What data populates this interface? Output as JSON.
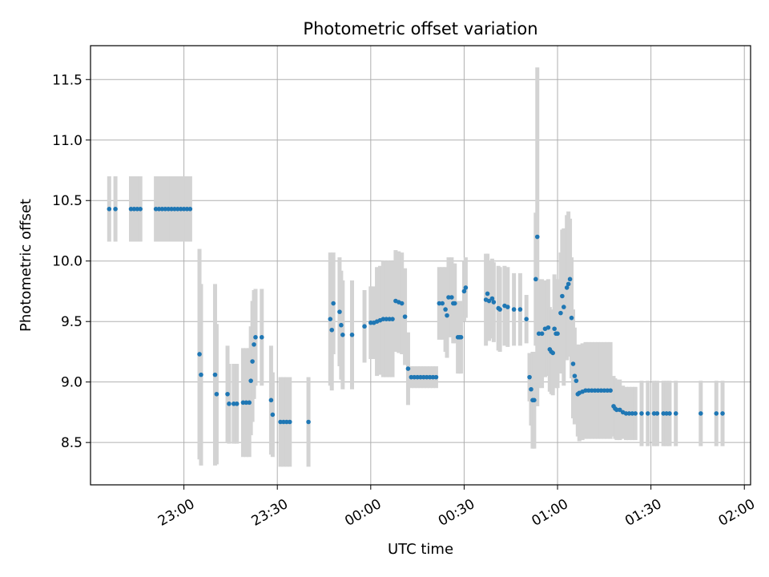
{
  "chart_data": {
    "type": "scatter",
    "title": "Photometric offset variation",
    "xlabel": "UTC time",
    "ylabel": "Photometric offset",
    "x_axis_type": "time",
    "xlim": [
      "22:30",
      "02:02"
    ],
    "ylim": [
      8.15,
      11.78
    ],
    "x_ticks": [
      {
        "time": "23:00",
        "label": "23:00"
      },
      {
        "time": "23:30",
        "label": "23:30"
      },
      {
        "time": "00:00",
        "label": "00:00"
      },
      {
        "time": "00:30",
        "label": "00:30"
      },
      {
        "time": "01:00",
        "label": "01:00"
      },
      {
        "time": "01:30",
        "label": "01:30"
      },
      {
        "time": "02:00",
        "label": "02:00"
      }
    ],
    "y_ticks": [
      8.5,
      9.0,
      9.5,
      10.0,
      10.5,
      11.0,
      11.5
    ],
    "y_tick_labels": [
      "8.5",
      "9.0",
      "9.5",
      "10.0",
      "10.5",
      "11.0",
      "11.5"
    ],
    "grid": true,
    "point_color": "#1f77b4",
    "errorbar_color": "#d3d3d3",
    "series": [
      {
        "points": [
          {
            "t": "22:36",
            "y": 10.43,
            "e": 0.27
          },
          {
            "t": "22:38",
            "y": 10.43,
            "e": 0.27
          },
          {
            "t": "22:43",
            "y": 10.43,
            "e": 0.27
          },
          {
            "t": "22:44",
            "y": 10.43,
            "e": 0.27
          },
          {
            "t": "22:45",
            "y": 10.43,
            "e": 0.27
          },
          {
            "t": "22:46",
            "y": 10.43,
            "e": 0.27
          },
          {
            "t": "22:51",
            "y": 10.43,
            "e": 0.27
          },
          {
            "t": "22:52",
            "y": 10.43,
            "e": 0.27
          },
          {
            "t": "22:53",
            "y": 10.43,
            "e": 0.27
          },
          {
            "t": "22:54",
            "y": 10.43,
            "e": 0.27
          },
          {
            "t": "22:55",
            "y": 10.43,
            "e": 0.27
          },
          {
            "t": "22:56",
            "y": 10.43,
            "e": 0.27
          },
          {
            "t": "22:57",
            "y": 10.43,
            "e": 0.27
          },
          {
            "t": "22:58",
            "y": 10.43,
            "e": 0.27
          },
          {
            "t": "22:59",
            "y": 10.43,
            "e": 0.27
          },
          {
            "t": "23:00",
            "y": 10.43,
            "e": 0.27
          },
          {
            "t": "23:01",
            "y": 10.43,
            "e": 0.27
          },
          {
            "t": "23:02",
            "y": 10.43,
            "e": 0.27
          },
          {
            "t": "23:05",
            "y": 9.23,
            "e": 0.87
          },
          {
            "t": "23:05.5",
            "y": 9.06,
            "e": 0.75
          },
          {
            "t": "23:10",
            "y": 9.06,
            "e": 0.75
          },
          {
            "t": "23:10.5",
            "y": 8.9,
            "e": 0.58
          },
          {
            "t": "23:14",
            "y": 8.9,
            "e": 0.4
          },
          {
            "t": "23:14.5",
            "y": 8.82,
            "e": 0.33
          },
          {
            "t": "23:16",
            "y": 8.82,
            "e": 0.33
          },
          {
            "t": "23:17",
            "y": 8.82,
            "e": 0.33
          },
          {
            "t": "23:19",
            "y": 8.83,
            "e": 0.45
          },
          {
            "t": "23:20",
            "y": 8.83,
            "e": 0.45
          },
          {
            "t": "23:21",
            "y": 8.83,
            "e": 0.45
          },
          {
            "t": "23:21.5",
            "y": 9.01,
            "e": 0.45
          },
          {
            "t": "23:22",
            "y": 9.17,
            "e": 0.5
          },
          {
            "t": "23:22.5",
            "y": 9.31,
            "e": 0.45
          },
          {
            "t": "23:23",
            "y": 9.37,
            "e": 0.4
          },
          {
            "t": "23:25",
            "y": 9.37,
            "e": 0.4
          },
          {
            "t": "23:28",
            "y": 8.85,
            "e": 0.45
          },
          {
            "t": "23:28.5",
            "y": 8.73,
            "e": 0.35
          },
          {
            "t": "23:31",
            "y": 8.67,
            "e": 0.37
          },
          {
            "t": "23:32",
            "y": 8.67,
            "e": 0.37
          },
          {
            "t": "23:33",
            "y": 8.67,
            "e": 0.37
          },
          {
            "t": "23:34",
            "y": 8.67,
            "e": 0.37
          },
          {
            "t": "23:40",
            "y": 8.67,
            "e": 0.37
          },
          {
            "t": "23:47",
            "y": 9.52,
            "e": 0.55
          },
          {
            "t": "23:47.5",
            "y": 9.43,
            "e": 0.5
          },
          {
            "t": "23:48",
            "y": 9.65,
            "e": 0.42
          },
          {
            "t": "23:50",
            "y": 9.58,
            "e": 0.45
          },
          {
            "t": "23:50.5",
            "y": 9.47,
            "e": 0.45
          },
          {
            "t": "23:51",
            "y": 9.39,
            "e": 0.45
          },
          {
            "t": "23:54",
            "y": 9.39,
            "e": 0.45
          },
          {
            "t": "23:58",
            "y": 9.46,
            "e": 0.3
          },
          {
            "t": "00:00",
            "y": 9.49,
            "e": 0.3
          },
          {
            "t": "00:01",
            "y": 9.49,
            "e": 0.3
          },
          {
            "t": "00:02",
            "y": 9.5,
            "e": 0.45
          },
          {
            "t": "00:03",
            "y": 9.51,
            "e": 0.45
          },
          {
            "t": "00:04",
            "y": 9.52,
            "e": 0.48
          },
          {
            "t": "00:05",
            "y": 9.52,
            "e": 0.48
          },
          {
            "t": "00:06",
            "y": 9.52,
            "e": 0.48
          },
          {
            "t": "00:07",
            "y": 9.52,
            "e": 0.48
          },
          {
            "t": "00:08",
            "y": 9.67,
            "e": 0.42
          },
          {
            "t": "00:09",
            "y": 9.66,
            "e": 0.42
          },
          {
            "t": "00:10",
            "y": 9.65,
            "e": 0.42
          },
          {
            "t": "00:11",
            "y": 9.54,
            "e": 0.4
          },
          {
            "t": "00:12",
            "y": 9.11,
            "e": 0.3
          },
          {
            "t": "00:13",
            "y": 9.04,
            "e": 0.09
          },
          {
            "t": "00:14",
            "y": 9.04,
            "e": 0.09
          },
          {
            "t": "00:15",
            "y": 9.04,
            "e": 0.09
          },
          {
            "t": "00:16",
            "y": 9.04,
            "e": 0.09
          },
          {
            "t": "00:17",
            "y": 9.04,
            "e": 0.09
          },
          {
            "t": "00:18",
            "y": 9.04,
            "e": 0.09
          },
          {
            "t": "00:19",
            "y": 9.04,
            "e": 0.09
          },
          {
            "t": "00:20",
            "y": 9.04,
            "e": 0.09
          },
          {
            "t": "00:21",
            "y": 9.04,
            "e": 0.09
          },
          {
            "t": "00:22",
            "y": 9.65,
            "e": 0.3
          },
          {
            "t": "00:23",
            "y": 9.65,
            "e": 0.3
          },
          {
            "t": "00:24",
            "y": 9.6,
            "e": 0.35
          },
          {
            "t": "00:24.5",
            "y": 9.55,
            "e": 0.35
          },
          {
            "t": "00:25",
            "y": 9.7,
            "e": 0.33
          },
          {
            "t": "00:26",
            "y": 9.7,
            "e": 0.33
          },
          {
            "t": "00:26.5",
            "y": 9.65,
            "e": 0.33
          },
          {
            "t": "00:27",
            "y": 9.65,
            "e": 0.33
          },
          {
            "t": "00:28",
            "y": 9.37,
            "e": 0.3
          },
          {
            "t": "00:28.5",
            "y": 9.37,
            "e": 0.3
          },
          {
            "t": "00:29",
            "y": 9.37,
            "e": 0.3
          },
          {
            "t": "00:30",
            "y": 9.75,
            "e": 0.25
          },
          {
            "t": "00:30.5",
            "y": 9.78,
            "e": 0.25
          },
          {
            "t": "00:37",
            "y": 9.68,
            "e": 0.38
          },
          {
            "t": "00:37.5",
            "y": 9.73,
            "e": 0.33
          },
          {
            "t": "00:38",
            "y": 9.67,
            "e": 0.33
          },
          {
            "t": "00:39",
            "y": 9.69,
            "e": 0.33
          },
          {
            "t": "00:39.5",
            "y": 9.66,
            "e": 0.33
          },
          {
            "t": "00:41",
            "y": 9.61,
            "e": 0.35
          },
          {
            "t": "00:41.5",
            "y": 9.6,
            "e": 0.35
          },
          {
            "t": "00:43",
            "y": 9.63,
            "e": 0.33
          },
          {
            "t": "00:44",
            "y": 9.62,
            "e": 0.33
          },
          {
            "t": "00:46",
            "y": 9.6,
            "e": 0.3
          },
          {
            "t": "00:48",
            "y": 9.6,
            "e": 0.3
          },
          {
            "t": "00:50",
            "y": 9.52,
            "e": 0.2
          },
          {
            "t": "00:51",
            "y": 9.04,
            "e": 0.2
          },
          {
            "t": "00:51.5",
            "y": 8.94,
            "e": 0.3
          },
          {
            "t": "00:52",
            "y": 8.85,
            "e": 0.4
          },
          {
            "t": "00:52.5",
            "y": 8.85,
            "e": 0.4
          },
          {
            "t": "00:53",
            "y": 9.85,
            "e": 0.55
          },
          {
            "t": "00:53.5",
            "y": 10.2,
            "e": 1.4
          },
          {
            "t": "00:54",
            "y": 9.4,
            "e": 0.45
          },
          {
            "t": "00:55",
            "y": 9.4,
            "e": 0.45
          },
          {
            "t": "00:56",
            "y": 9.44,
            "e": 0.4
          },
          {
            "t": "00:57",
            "y": 9.45,
            "e": 0.4
          },
          {
            "t": "00:57.5",
            "y": 9.27,
            "e": 0.35
          },
          {
            "t": "00:58",
            "y": 9.25,
            "e": 0.35
          },
          {
            "t": "00:58.5",
            "y": 9.24,
            "e": 0.35
          },
          {
            "t": "00:59",
            "y": 9.44,
            "e": 0.45
          },
          {
            "t": "00:59.5",
            "y": 9.4,
            "e": 0.45
          },
          {
            "t": "01:00",
            "y": 9.4,
            "e": 0.45
          },
          {
            "t": "01:01",
            "y": 9.57,
            "e": 0.5
          },
          {
            "t": "01:01.5",
            "y": 9.71,
            "e": 0.55
          },
          {
            "t": "01:02",
            "y": 9.62,
            "e": 0.65
          },
          {
            "t": "01:03",
            "y": 9.78,
            "e": 0.6
          },
          {
            "t": "01:03.5",
            "y": 9.81,
            "e": 0.6
          },
          {
            "t": "01:04",
            "y": 9.85,
            "e": 0.5
          },
          {
            "t": "01:04.5",
            "y": 9.53,
            "e": 0.5
          },
          {
            "t": "01:05",
            "y": 9.15,
            "e": 0.45
          },
          {
            "t": "01:05.5",
            "y": 9.05,
            "e": 0.4
          },
          {
            "t": "01:06",
            "y": 9.01,
            "e": 0.3
          },
          {
            "t": "01:06.5",
            "y": 8.9,
            "e": 0.35
          },
          {
            "t": "01:07",
            "y": 8.91,
            "e": 0.4
          },
          {
            "t": "01:08",
            "y": 8.92,
            "e": 0.4
          },
          {
            "t": "01:09",
            "y": 8.93,
            "e": 0.4
          },
          {
            "t": "01:10",
            "y": 8.93,
            "e": 0.4
          },
          {
            "t": "01:11",
            "y": 8.93,
            "e": 0.4
          },
          {
            "t": "01:12",
            "y": 8.93,
            "e": 0.4
          },
          {
            "t": "01:13",
            "y": 8.93,
            "e": 0.4
          },
          {
            "t": "01:14",
            "y": 8.93,
            "e": 0.4
          },
          {
            "t": "01:15",
            "y": 8.93,
            "e": 0.4
          },
          {
            "t": "01:16",
            "y": 8.93,
            "e": 0.4
          },
          {
            "t": "01:17",
            "y": 8.93,
            "e": 0.4
          },
          {
            "t": "01:18",
            "y": 8.8,
            "e": 0.25
          },
          {
            "t": "01:18.5",
            "y": 8.78,
            "e": 0.25
          },
          {
            "t": "01:19",
            "y": 8.77,
            "e": 0.25
          },
          {
            "t": "01:20",
            "y": 8.77,
            "e": 0.25
          },
          {
            "t": "01:21",
            "y": 8.75,
            "e": 0.22
          },
          {
            "t": "01:22",
            "y": 8.74,
            "e": 0.22
          },
          {
            "t": "01:23",
            "y": 8.74,
            "e": 0.22
          },
          {
            "t": "01:24",
            "y": 8.74,
            "e": 0.22
          },
          {
            "t": "01:25",
            "y": 8.74,
            "e": 0.22
          },
          {
            "t": "01:27",
            "y": 8.74,
            "e": 0.27
          },
          {
            "t": "01:29",
            "y": 8.74,
            "e": 0.27
          },
          {
            "t": "01:31",
            "y": 8.74,
            "e": 0.27
          },
          {
            "t": "01:32",
            "y": 8.74,
            "e": 0.27
          },
          {
            "t": "01:34",
            "y": 8.74,
            "e": 0.27
          },
          {
            "t": "01:35",
            "y": 8.74,
            "e": 0.27
          },
          {
            "t": "01:36",
            "y": 8.74,
            "e": 0.27
          },
          {
            "t": "01:38",
            "y": 8.74,
            "e": 0.27
          },
          {
            "t": "01:46",
            "y": 8.74,
            "e": 0.27
          },
          {
            "t": "01:51",
            "y": 8.74,
            "e": 0.27
          },
          {
            "t": "01:53",
            "y": 8.74,
            "e": 0.27
          }
        ]
      }
    ]
  }
}
